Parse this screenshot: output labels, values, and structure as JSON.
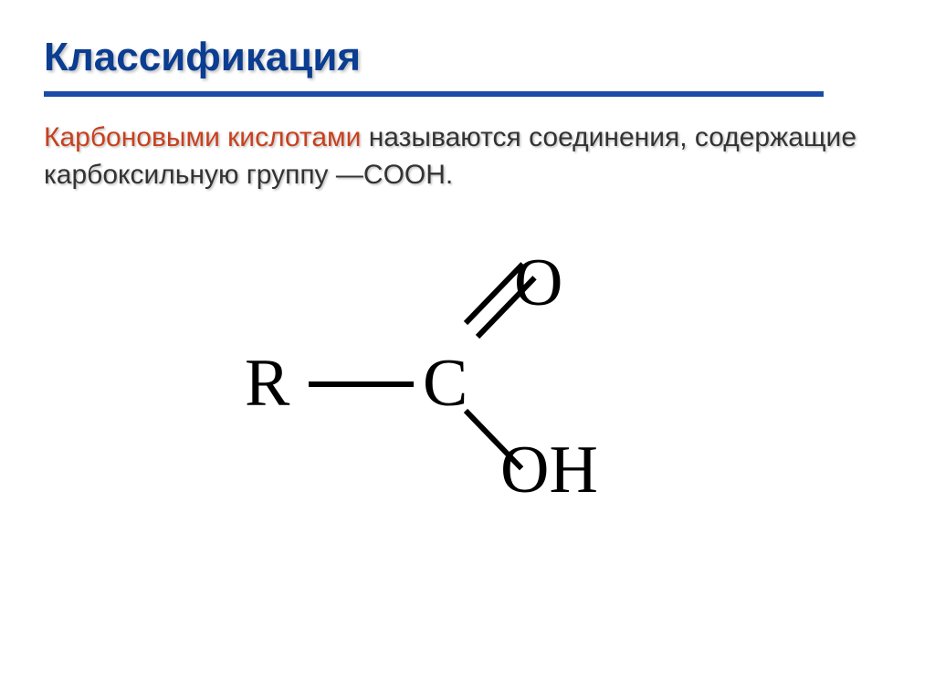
{
  "slide": {
    "title": "Классификация",
    "definition": {
      "hilite": "Карбоновыми кислотами",
      "rest": " называются соединения, содержащие карбоксильную группу ",
      "group": "—COOH.",
      "hilite_color": "#c8401e",
      "body_color": "#333333",
      "fontsize": 30
    },
    "colors": {
      "title": "#0b3d91",
      "divider": "#1a4ba8",
      "background": "#ffffff",
      "formula": "#000000"
    },
    "title_fontsize": 44,
    "formula": {
      "atoms": {
        "r": "R",
        "c": "C",
        "o": "O",
        "oh": "OH"
      },
      "fontsize": 74,
      "font_family": "Times New Roman",
      "bond_width": 6,
      "bonds": [
        {
          "from": "R",
          "to": "C",
          "type": "single"
        },
        {
          "from": "C",
          "to": "O",
          "type": "double"
        },
        {
          "from": "C",
          "to": "OH",
          "type": "single"
        }
      ]
    }
  }
}
